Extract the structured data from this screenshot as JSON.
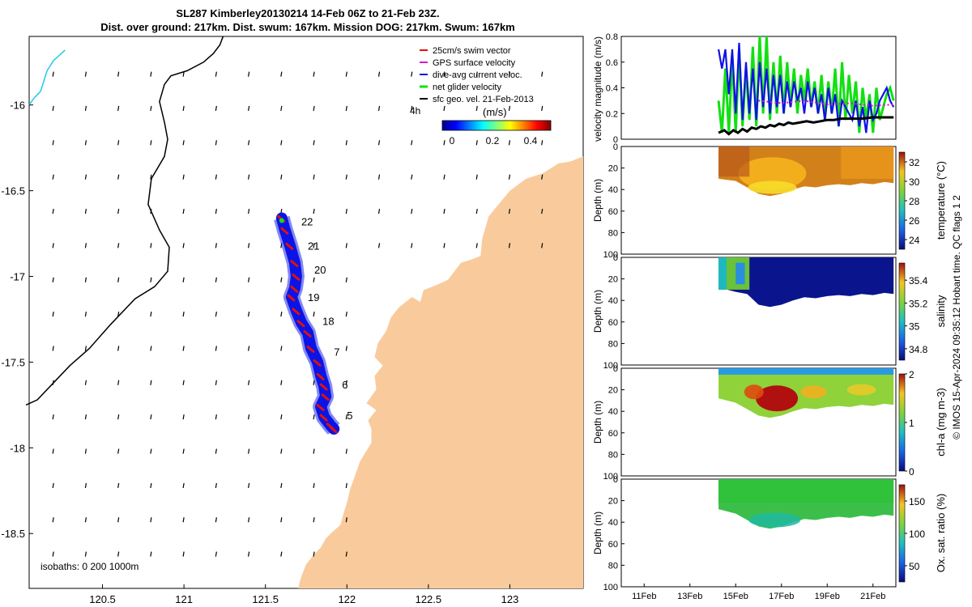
{
  "title": {
    "line1": "SL287 Kimberley20130214 14-Feb 06Z to 21-Feb 23Z.",
    "line2": "Dist. over ground: 217km. Dist. swum: 167km. Mission DOG: 217km. Swum: 167km"
  },
  "colors": {
    "land": "#f9cb9c",
    "track": "#0a14e6",
    "swim": "#e01010",
    "gps": "#d020d0",
    "dive_avg": "#1010e8",
    "net_glider": "#12e012",
    "sfc_geo": "#000000",
    "isobath_200": "#000000",
    "isobath_1000": "#22c8e8"
  },
  "chart_data": [
    {
      "id": "map",
      "type": "scatter",
      "title": "SL287 Kimberley20130214 14-Feb 06Z to 21-Feb 23Z.",
      "xlim": [
        120.05,
        123.45
      ],
      "ylim": [
        -18.82,
        -15.6
      ],
      "xticks": [
        120.5,
        121,
        121.5,
        122,
        122.5,
        123
      ],
      "yticks": [
        -16,
        -16.5,
        -17,
        -17.5,
        -18,
        -18.5
      ],
      "xtick_labels": [
        "120.5",
        "121",
        "121.5",
        "122",
        "122.5",
        "123"
      ],
      "ytick_labels": [
        "-16",
        "-16.5",
        "-17",
        "-17.5",
        "-18",
        "-18.5"
      ],
      "legend": {
        "placement": "top-right",
        "entries": [
          "25cm/s swim vector",
          "GPS surface velocity",
          "dive-avg current veloc.",
          "net glider velocity",
          "sfc geo. vel. 21-Feb-2013"
        ]
      },
      "colorbar": {
        "title": "(m/s)",
        "extra_label": "4h",
        "range": [
          0,
          0.5
        ],
        "ticks": [
          "0",
          "0.2",
          "0.4"
        ],
        "colormap": "jet"
      },
      "isobaths_label": "isobaths: 0   200   1000m",
      "track": {
        "name": "glider track",
        "lon": [
          121.6,
          121.62,
          121.65,
          121.68,
          121.69,
          121.68,
          121.66,
          121.69,
          121.72,
          121.76,
          121.78,
          121.82,
          121.84,
          121.86,
          121.87,
          121.84,
          121.86,
          121.9,
          121.92
        ],
        "lat": [
          -16.66,
          -16.73,
          -16.82,
          -16.92,
          -17.0,
          -17.07,
          -17.12,
          -17.2,
          -17.27,
          -17.33,
          -17.42,
          -17.5,
          -17.58,
          -17.64,
          -17.7,
          -17.76,
          -17.82,
          -17.87,
          -17.89
        ]
      },
      "day_labels": [
        {
          "text": "22",
          "lon": 121.72,
          "lat": -16.68
        },
        {
          "text": "21",
          "lon": 121.76,
          "lat": -16.82
        },
        {
          "text": "20",
          "lon": 121.8,
          "lat": -16.96
        },
        {
          "text": "19",
          "lon": 121.76,
          "lat": -17.12
        },
        {
          "text": "18",
          "lon": 121.85,
          "lat": -17.26
        },
        {
          "text": "7",
          "lon": 121.92,
          "lat": -17.44
        },
        {
          "text": "6",
          "lon": 121.97,
          "lat": -17.63
        },
        {
          "text": "5",
          "lon": 122.0,
          "lat": -17.81
        }
      ],
      "isobath_200": {
        "lon": [
          120.03,
          120.1,
          120.2,
          120.3,
          120.42,
          120.55,
          120.7,
          120.82,
          120.9,
          120.91,
          120.85,
          120.78,
          120.8,
          120.88,
          120.9,
          120.88,
          120.85,
          120.88,
          120.92,
          121.02,
          121.12,
          121.18,
          121.22,
          121.24
        ],
        "lat": [
          -17.75,
          -17.72,
          -17.62,
          -17.52,
          -17.42,
          -17.28,
          -17.13,
          -17.06,
          -16.97,
          -16.83,
          -16.73,
          -16.58,
          -16.43,
          -16.3,
          -16.2,
          -16.1,
          -15.98,
          -15.88,
          -15.83,
          -15.8,
          -15.75,
          -15.7,
          -15.65,
          -15.6
        ]
      },
      "isobath_1000": {
        "lon": [
          120.05,
          120.08,
          120.12,
          120.14,
          120.16,
          120.2,
          120.27
        ],
        "lat": [
          -16.0,
          -15.96,
          -15.92,
          -15.86,
          -15.8,
          -15.74,
          -15.68
        ]
      },
      "coast": {
        "lon": [
          123.45,
          123.37,
          123.3,
          123.2,
          123.1,
          123.0,
          122.93,
          122.87,
          122.83,
          122.82,
          122.77,
          122.7,
          122.62,
          122.55,
          122.47,
          122.45,
          122.4,
          122.32,
          122.27,
          122.24,
          122.19,
          122.17,
          122.22,
          122.17,
          122.18,
          122.12,
          122.18,
          122.13,
          122.15,
          122.15,
          122.08,
          122.05,
          122.02,
          122.0,
          121.98,
          121.96,
          121.9,
          121.87,
          121.84,
          121.8,
          121.75,
          121.72,
          121.7
        ],
        "lat": [
          -16.3,
          -16.33,
          -16.34,
          -16.4,
          -16.43,
          -16.5,
          -16.58,
          -16.65,
          -16.78,
          -16.88,
          -16.9,
          -16.92,
          -17.02,
          -17.05,
          -17.08,
          -17.15,
          -17.12,
          -17.18,
          -17.24,
          -17.32,
          -17.39,
          -17.47,
          -17.52,
          -17.58,
          -17.66,
          -17.74,
          -17.78,
          -17.84,
          -17.89,
          -17.97,
          -18.08,
          -18.16,
          -18.24,
          -18.32,
          -18.38,
          -18.45,
          -18.5,
          -18.53,
          -18.58,
          -18.62,
          -18.68,
          -18.75,
          -18.82
        ]
      }
    },
    {
      "id": "velocity",
      "type": "line",
      "ylabel": "velocity magnitude (m/s)",
      "ylim": [
        0,
        0.8
      ],
      "yticks": [
        "0",
        "0.2",
        "0.4",
        "0.6",
        "0.8"
      ],
      "xlim": [
        10,
        22
      ],
      "series": [
        {
          "name": "net glider velocity",
          "color": "#12e012",
          "x": [
            14.25,
            14.4,
            14.55,
            14.7,
            14.85,
            15.0,
            15.15,
            15.3,
            15.45,
            15.6,
            15.75,
            15.9,
            16.05,
            16.2,
            16.35,
            16.5,
            16.65,
            16.8,
            16.95,
            17.1,
            17.25,
            17.4,
            17.55,
            17.7,
            17.85,
            18.0,
            18.15,
            18.3,
            18.45,
            18.6,
            18.75,
            18.9,
            19.05,
            19.2,
            19.35,
            19.5,
            19.65,
            19.8,
            19.95,
            20.1,
            20.25,
            20.4,
            20.55,
            20.7,
            20.85,
            21.0,
            21.15,
            21.3,
            21.45,
            21.6,
            21.75,
            21.9
          ],
          "values": [
            0.3,
            0.05,
            0.55,
            0.05,
            0.65,
            0.05,
            0.7,
            0.1,
            0.55,
            0.15,
            0.72,
            0.1,
            0.8,
            0.2,
            0.8,
            0.15,
            0.6,
            0.2,
            0.65,
            0.2,
            0.6,
            0.25,
            0.55,
            0.2,
            0.5,
            0.3,
            0.55,
            0.25,
            0.45,
            0.2,
            0.5,
            0.15,
            0.45,
            0.2,
            0.55,
            0.1,
            0.6,
            0.15,
            0.5,
            0.2,
            0.45,
            0.05,
            0.4,
            0.15,
            0.35,
            0.05,
            0.4,
            0.15,
            0.25,
            0.35,
            0.4,
            0.3
          ]
        },
        {
          "name": "dive-avg current veloc.",
          "color": "#1010e8",
          "x": [
            14.25,
            14.4,
            14.55,
            14.7,
            14.85,
            15.0,
            15.15,
            15.3,
            15.45,
            15.6,
            15.75,
            15.9,
            16.05,
            16.2,
            16.35,
            16.5,
            16.65,
            16.8,
            16.95,
            17.1,
            17.25,
            17.4,
            17.55,
            17.7,
            17.85,
            18.0,
            18.15,
            18.3,
            18.45,
            18.6,
            18.75,
            18.9,
            19.05,
            19.2,
            19.35,
            19.5,
            19.65,
            19.8,
            19.95,
            20.1,
            20.25,
            20.4,
            20.55,
            20.7,
            20.85,
            21.0,
            21.15,
            21.3,
            21.45,
            21.6,
            21.75,
            21.9
          ],
          "values": [
            0.7,
            0.55,
            0.7,
            0.35,
            0.7,
            0.2,
            0.75,
            0.15,
            0.6,
            0.2,
            0.55,
            0.15,
            0.6,
            0.25,
            0.55,
            0.2,
            0.5,
            0.25,
            0.5,
            0.2,
            0.45,
            0.25,
            0.45,
            0.3,
            0.4,
            0.2,
            0.45,
            0.25,
            0.4,
            0.2,
            0.35,
            0.15,
            0.4,
            0.2,
            0.35,
            0.1,
            0.3,
            0.25,
            0.2,
            0.15,
            0.3,
            0.1,
            0.25,
            0.05,
            0.3,
            0.15,
            0.2,
            0.3,
            0.35,
            0.4,
            0.3,
            0.25
          ]
        },
        {
          "name": "GPS surface velocity",
          "color": "#d020d0",
          "x": [
            16.0,
            17.0,
            18.0,
            19.0,
            20.0,
            21.0,
            21.9
          ],
          "values": [
            0.3,
            0.28,
            0.3,
            0.27,
            0.28,
            0.26,
            0.27
          ]
        },
        {
          "name": "sfc geo. vel. 21-Feb-2013",
          "color": "#000000",
          "x": [
            14.25,
            14.5,
            14.7,
            14.9,
            15.1,
            15.3,
            15.5,
            15.7,
            15.9,
            16.1,
            16.3,
            16.5,
            16.7,
            16.9,
            17.1,
            17.3,
            17.5,
            17.8,
            18.1,
            18.4,
            18.7,
            19.0,
            19.3,
            19.6,
            20.0,
            20.5,
            21.0,
            21.5,
            21.9
          ],
          "values": [
            0.05,
            0.07,
            0.04,
            0.07,
            0.05,
            0.08,
            0.06,
            0.09,
            0.08,
            0.1,
            0.09,
            0.11,
            0.1,
            0.12,
            0.11,
            0.13,
            0.12,
            0.13,
            0.14,
            0.13,
            0.14,
            0.15,
            0.15,
            0.16,
            0.16,
            0.16,
            0.17,
            0.17,
            0.17
          ]
        }
      ]
    },
    {
      "id": "temperature",
      "type": "heatmap",
      "ylabel": "Depth (m)",
      "colorbar_label": "temperature (°C)",
      "clim": [
        23,
        33
      ],
      "ticks": [
        "32",
        "30",
        "28",
        "26",
        "24"
      ],
      "colormap": "parula-like",
      "yticks": [
        "0",
        "20",
        "40",
        "60",
        "80",
        "100"
      ],
      "ylim": [
        0,
        100
      ],
      "data_x": [
        14.25,
        21.9
      ],
      "bottom_depth": [
        [
          14.25,
          30
        ],
        [
          15.0,
          32
        ],
        [
          15.5,
          38
        ],
        [
          16.0,
          44
        ],
        [
          16.5,
          46
        ],
        [
          17.0,
          44
        ],
        [
          17.5,
          40
        ],
        [
          18.0,
          37
        ],
        [
          18.5,
          38
        ],
        [
          19.0,
          36
        ],
        [
          19.5,
          35
        ],
        [
          20.0,
          36
        ],
        [
          20.5,
          34
        ],
        [
          21.0,
          35
        ],
        [
          21.5,
          33
        ],
        [
          21.9,
          34
        ]
      ]
    },
    {
      "id": "salinity",
      "type": "heatmap",
      "ylabel": "Depth (m)",
      "colorbar_label": "salinity",
      "clim": [
        34.7,
        35.55
      ],
      "ticks": [
        "35.4",
        "35.2",
        "35",
        "34.8"
      ],
      "colormap": "parula-like",
      "yticks": [
        "0",
        "20",
        "40",
        "60",
        "80",
        "100"
      ],
      "ylim": [
        0,
        100
      ],
      "data_x": [
        14.25,
        21.9
      ],
      "bottom_depth": [
        [
          14.25,
          28
        ],
        [
          15.0,
          32
        ],
        [
          15.5,
          34
        ],
        [
          16.0,
          44
        ],
        [
          16.5,
          46
        ],
        [
          17.0,
          44
        ],
        [
          17.5,
          40
        ],
        [
          18.0,
          37
        ],
        [
          18.5,
          38
        ],
        [
          19.0,
          36
        ],
        [
          19.5,
          35
        ],
        [
          20.0,
          36
        ],
        [
          20.5,
          34
        ],
        [
          21.0,
          35
        ],
        [
          21.5,
          33
        ],
        [
          21.9,
          34
        ]
      ]
    },
    {
      "id": "chla",
      "type": "heatmap",
      "ylabel": "Depth (m)",
      "colorbar_label": "chl-a (mg m-3)",
      "clim": [
        0,
        2
      ],
      "ticks": [
        "2",
        "1",
        "0"
      ],
      "colormap": "parula-like",
      "yticks": [
        "0",
        "20",
        "40",
        "60",
        "80",
        "100"
      ],
      "ylim": [
        0,
        100
      ],
      "data_x": [
        14.25,
        21.9
      ],
      "bottom_depth": [
        [
          14.25,
          28
        ],
        [
          15.0,
          32
        ],
        [
          15.5,
          38
        ],
        [
          16.0,
          44
        ],
        [
          16.5,
          46
        ],
        [
          17.0,
          44
        ],
        [
          17.5,
          40
        ],
        [
          18.0,
          37
        ],
        [
          18.5,
          38
        ],
        [
          19.0,
          36
        ],
        [
          19.5,
          35
        ],
        [
          20.0,
          36
        ],
        [
          20.5,
          34
        ],
        [
          21.0,
          35
        ],
        [
          21.5,
          33
        ],
        [
          21.9,
          34
        ]
      ]
    },
    {
      "id": "oxygen",
      "type": "heatmap",
      "ylabel": "Depth (m)",
      "colorbar_label": "Ox. sat. ratio (%)",
      "clim": [
        25,
        175
      ],
      "ticks": [
        "150",
        "100",
        "50"
      ],
      "colormap": "parula-like",
      "yticks": [
        "0",
        "20",
        "40",
        "60",
        "80",
        "100"
      ],
      "ylim": [
        0,
        100
      ],
      "xticks": [
        "11Feb",
        "13Feb",
        "15Feb",
        "17Feb",
        "19Feb",
        "21Feb"
      ],
      "xtick_values": [
        11,
        13,
        15,
        17,
        19,
        21
      ],
      "xlim": [
        10,
        22
      ],
      "data_x": [
        14.25,
        21.9
      ],
      "bottom_depth": [
        [
          14.25,
          28
        ],
        [
          15.0,
          32
        ],
        [
          15.5,
          38
        ],
        [
          16.0,
          44
        ],
        [
          16.5,
          46
        ],
        [
          17.0,
          44
        ],
        [
          17.5,
          40
        ],
        [
          18.0,
          37
        ],
        [
          18.5,
          38
        ],
        [
          19.0,
          36
        ],
        [
          19.5,
          35
        ],
        [
          20.0,
          36
        ],
        [
          20.5,
          34
        ],
        [
          21.0,
          35
        ],
        [
          21.5,
          33
        ],
        [
          21.9,
          34
        ]
      ]
    }
  ],
  "footer": {
    "credit": "© IMOS 15-Apr-2024 09:35:12 Hobart time. QC flags 1  2"
  }
}
